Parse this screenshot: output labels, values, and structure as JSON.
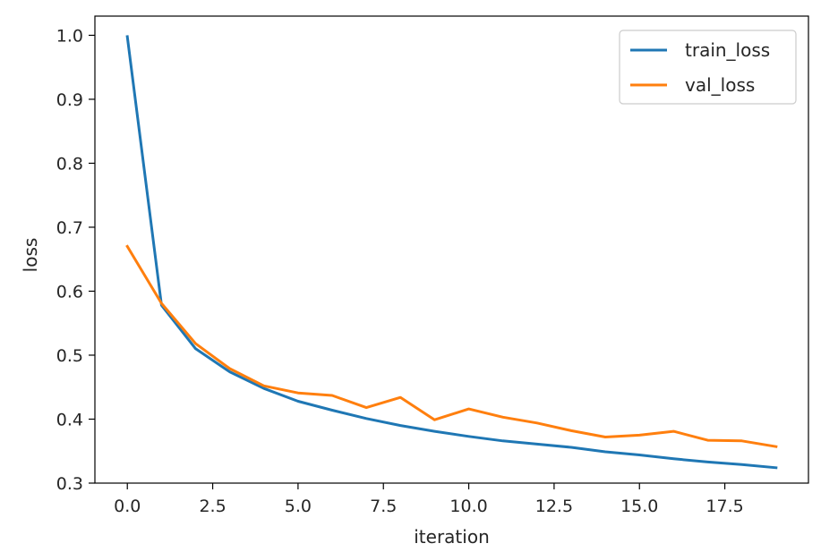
{
  "chart_data": {
    "type": "line",
    "xlabel": "iteration",
    "ylabel": "loss",
    "xlim": [
      -0.95,
      19.95
    ],
    "ylim": [
      0.3,
      1.03
    ],
    "xticks": [
      0.0,
      2.5,
      5.0,
      7.5,
      10.0,
      12.5,
      15.0,
      17.5
    ],
    "xtick_labels": [
      "0.0",
      "2.5",
      "5.0",
      "7.5",
      "10.0",
      "12.5",
      "15.0",
      "17.5"
    ],
    "yticks": [
      0.3,
      0.4,
      0.5,
      0.6,
      0.7,
      0.8,
      0.9,
      1.0
    ],
    "ytick_labels": [
      "0.3",
      "0.4",
      "0.5",
      "0.6",
      "0.7",
      "0.8",
      "0.9",
      "1.0"
    ],
    "grid": false,
    "legend_position": "top-right",
    "x": [
      0,
      1,
      2,
      3,
      4,
      5,
      6,
      7,
      8,
      9,
      10,
      11,
      12,
      13,
      14,
      15,
      16,
      17,
      18,
      19
    ],
    "series": [
      {
        "name": "train_loss",
        "color": "#1f77b4",
        "values": [
          0.998,
          0.578,
          0.51,
          0.474,
          0.448,
          0.428,
          0.414,
          0.401,
          0.39,
          0.381,
          0.373,
          0.366,
          0.361,
          0.356,
          0.349,
          0.344,
          0.338,
          0.333,
          0.329,
          0.324
        ]
      },
      {
        "name": "val_loss",
        "color": "#ff7f0e",
        "values": [
          0.67,
          0.581,
          0.518,
          0.479,
          0.452,
          0.441,
          0.437,
          0.418,
          0.434,
          0.399,
          0.416,
          0.403,
          0.394,
          0.382,
          0.372,
          0.375,
          0.381,
          0.367,
          0.366,
          0.357
        ]
      }
    ]
  }
}
